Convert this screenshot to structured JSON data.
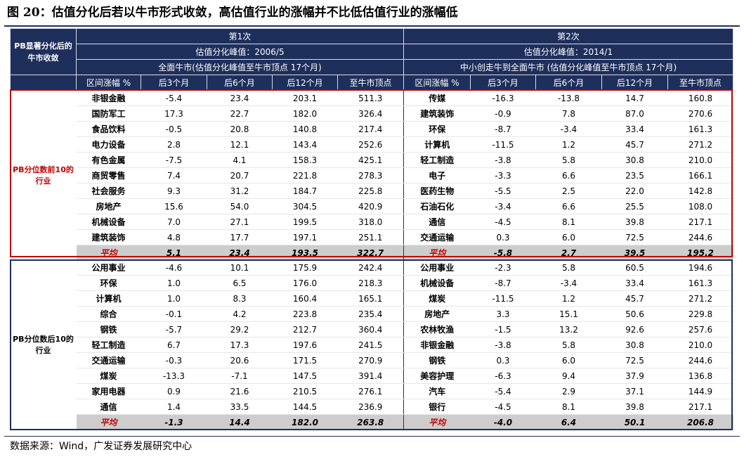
{
  "title": "图 20：估值分化后若以牛市形式收敛，高估值行业的涨幅并不比低估值行业的涨幅低",
  "source": "数据来源：Wind，广发证券发展研究中心",
  "colors": {
    "header_bg": "#1f2f5c",
    "top_box": "#c00000",
    "average_bg": "#cdcdcd"
  },
  "header": {
    "left_label": "PB显著分化后的牛市收敛",
    "periods": [
      {
        "name": "第1次",
        "peak": "估值分化峰值：2006/5",
        "desc": "全面牛市(估值分化峰值至牛市顶点 17个月)"
      },
      {
        "name": "第2次",
        "peak": "估值分化峰值：2014/1",
        "desc": "中小创走牛到全面牛市 (估值分化峰值至牛市顶点 17个月)"
      }
    ],
    "columns": [
      "区间涨幅 %",
      "后3个月",
      "后6个月",
      "后12个月",
      "至牛市顶点"
    ]
  },
  "groups": [
    {
      "label": "PB分位数前10的行业",
      "rows": [
        [
          "非银金融",
          "-5.4",
          "23.4",
          "203.1",
          "511.3",
          "传媒",
          "-16.3",
          "-13.8",
          "14.7",
          "160.8"
        ],
        [
          "国防军工",
          "17.3",
          "22.7",
          "182.0",
          "326.4",
          "建筑装饰",
          "-0.9",
          "7.8",
          "87.0",
          "270.6"
        ],
        [
          "食品饮料",
          "-0.5",
          "20.8",
          "140.8",
          "217.4",
          "环保",
          "-8.7",
          "-3.4",
          "33.4",
          "161.3"
        ],
        [
          "电力设备",
          "2.8",
          "12.1",
          "143.4",
          "252.6",
          "计算机",
          "-11.5",
          "1.2",
          "45.7",
          "271.2"
        ],
        [
          "有色金属",
          "-7.5",
          "4.1",
          "158.3",
          "425.1",
          "轻工制造",
          "-3.8",
          "5.8",
          "30.8",
          "210.0"
        ],
        [
          "商贸零售",
          "7.4",
          "20.7",
          "221.8",
          "278.3",
          "电子",
          "-3.3",
          "6.6",
          "23.5",
          "166.1"
        ],
        [
          "社会服务",
          "9.3",
          "31.2",
          "184.7",
          "225.8",
          "医药生物",
          "-5.5",
          "2.5",
          "22.0",
          "142.8"
        ],
        [
          "房地产",
          "15.6",
          "54.0",
          "304.5",
          "420.9",
          "石油石化",
          "-3.4",
          "6.6",
          "25.5",
          "108.0"
        ],
        [
          "机械设备",
          "7.0",
          "27.1",
          "199.5",
          "318.0",
          "通信",
          "-4.5",
          "8.1",
          "39.8",
          "217.1"
        ],
        [
          "建筑装饰",
          "4.8",
          "17.7",
          "197.1",
          "251.1",
          "交通运输",
          "0.3",
          "6.0",
          "72.5",
          "244.6"
        ]
      ],
      "average": [
        "平均",
        "5.1",
        "23.4",
        "193.5",
        "322.7",
        "平均",
        "-5.8",
        "2.7",
        "39.5",
        "195.2"
      ]
    },
    {
      "label": "PB分位数后10的行业",
      "rows": [
        [
          "公用事业",
          "-4.6",
          "10.1",
          "175.9",
          "242.4",
          "公用事业",
          "-2.3",
          "5.8",
          "60.5",
          "194.6"
        ],
        [
          "环保",
          "1.0",
          "6.5",
          "176.0",
          "218.3",
          "机械设备",
          "-8.7",
          "-3.4",
          "33.4",
          "161.3"
        ],
        [
          "计算机",
          "1.0",
          "8.3",
          "160.4",
          "165.1",
          "煤炭",
          "-11.5",
          "1.2",
          "45.7",
          "271.2"
        ],
        [
          "综合",
          "-0.1",
          "4.2",
          "223.8",
          "235.4",
          "房地产",
          "3.3",
          "15.1",
          "50.6",
          "229.8"
        ],
        [
          "钢铁",
          "-5.7",
          "29.2",
          "212.7",
          "360.4",
          "农林牧渔",
          "-1.5",
          "13.2",
          "92.6",
          "257.6"
        ],
        [
          "轻工制造",
          "6.7",
          "17.3",
          "197.6",
          "241.5",
          "非银金融",
          "-3.8",
          "5.8",
          "30.8",
          "210.0"
        ],
        [
          "交通运输",
          "-0.3",
          "20.6",
          "171.5",
          "270.9",
          "钢铁",
          "0.3",
          "6.0",
          "72.5",
          "244.6"
        ],
        [
          "煤炭",
          "-13.3",
          "-7.1",
          "147.5",
          "391.4",
          "美容护理",
          "-6.3",
          "9.4",
          "37.9",
          "136.8"
        ],
        [
          "家用电器",
          "0.9",
          "21.6",
          "210.5",
          "276.1",
          "汽车",
          "-5.4",
          "2.9",
          "37.1",
          "144.9"
        ],
        [
          "通信",
          "1.4",
          "33.5",
          "144.5",
          "236.9",
          "银行",
          "-4.5",
          "8.1",
          "39.8",
          "217.1"
        ]
      ],
      "average": [
        "平均",
        "-1.3",
        "14.4",
        "182.0",
        "263.8",
        "平均",
        "-4.0",
        "6.4",
        "50.1",
        "206.8"
      ]
    }
  ]
}
